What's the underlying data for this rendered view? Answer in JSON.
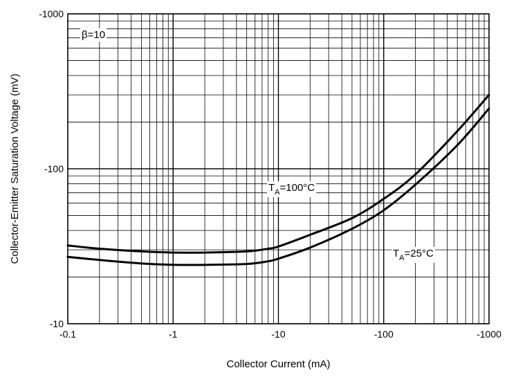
{
  "chart_data": {
    "type": "line",
    "xlabel": "Collector Current (mA)",
    "ylabel": "Collector-Emitter Saturation Voltage (mV)",
    "x_scale": "log",
    "y_scale": "log",
    "xlim": [
      -0.1,
      -1000
    ],
    "ylim": [
      -10,
      -1000
    ],
    "x_tick_labels": [
      "-0.1",
      "-1",
      "-10",
      "-100",
      "-1000"
    ],
    "y_tick_labels": [
      "-10",
      "-100",
      "-1000"
    ],
    "grid": true,
    "annotations": {
      "beta": "β=10",
      "t100": {
        "main": "T",
        "sub": "A",
        "rest": "=100°C"
      },
      "t25": {
        "main": "T",
        "sub": "A",
        "rest": "=25°C"
      }
    },
    "series": [
      {
        "name": "TA=100°C",
        "x": [
          -0.1,
          -0.2,
          -0.5,
          -1,
          -2,
          -5,
          -8,
          -10,
          -20,
          -50,
          -100,
          -200,
          -500,
          -1000
        ],
        "y": [
          -32,
          -30.5,
          -29.3,
          -28.8,
          -28.8,
          -29.3,
          -30.5,
          -31.5,
          -37.5,
          -48,
          -64,
          -92,
          -175,
          -300
        ]
      },
      {
        "name": "TA=25°C",
        "x": [
          -0.1,
          -0.2,
          -0.5,
          -1,
          -2,
          -5,
          -8,
          -10,
          -20,
          -50,
          -100,
          -200,
          -500,
          -1000
        ],
        "y": [
          -27,
          -25.8,
          -24.5,
          -24,
          -24,
          -24.3,
          -25.3,
          -26.3,
          -31,
          -41,
          -54,
          -79,
          -142,
          -245
        ]
      }
    ]
  }
}
